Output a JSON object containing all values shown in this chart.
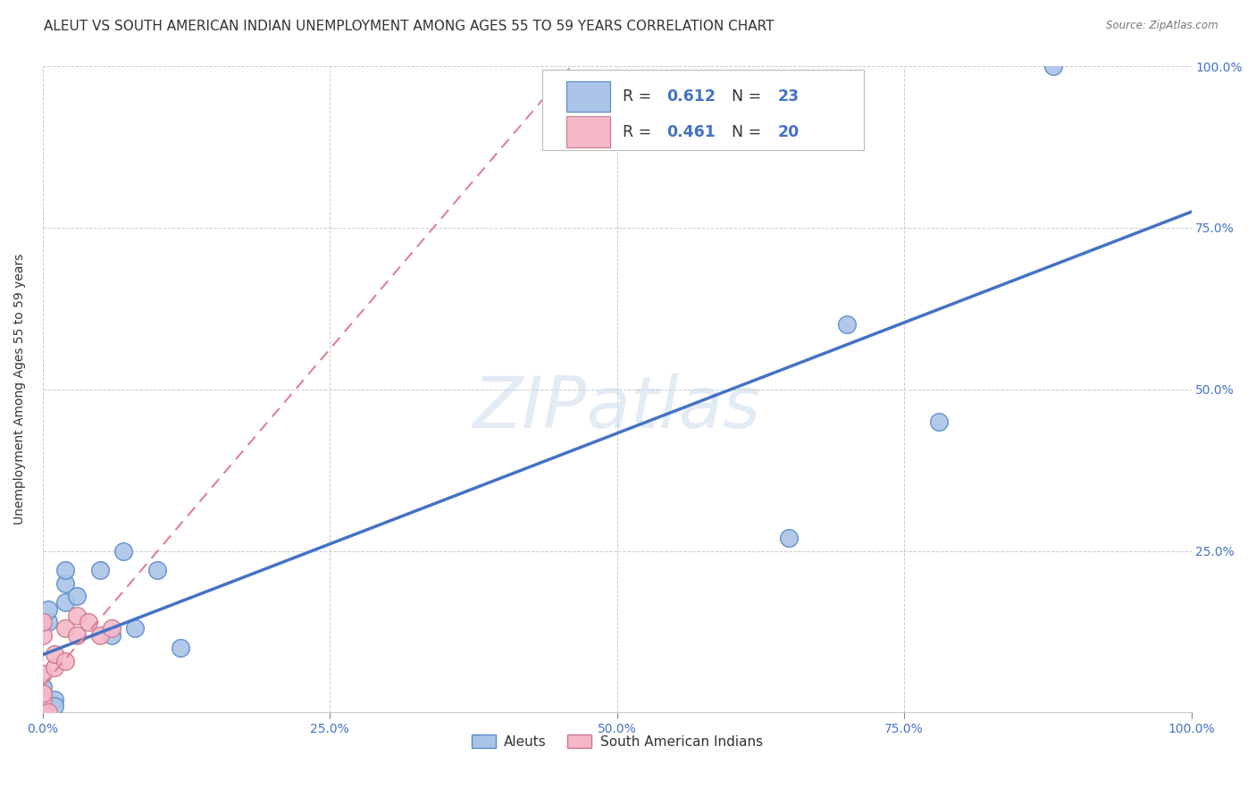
{
  "title": "ALEUT VS SOUTH AMERICAN INDIAN UNEMPLOYMENT AMONG AGES 55 TO 59 YEARS CORRELATION CHART",
  "source": "Source: ZipAtlas.com",
  "ylabel": "Unemployment Among Ages 55 to 59 years",
  "watermark": "ZIPatlas",
  "aleuts_x": [
    0.0,
    0.0,
    0.0,
    0.0,
    0.0,
    0.005,
    0.005,
    0.01,
    0.01,
    0.02,
    0.02,
    0.02,
    0.03,
    0.05,
    0.06,
    0.07,
    0.08,
    0.1,
    0.12,
    0.65,
    0.7,
    0.78,
    0.88
  ],
  "aleuts_y": [
    0.0,
    0.01,
    0.02,
    0.04,
    0.0,
    0.14,
    0.16,
    0.02,
    0.01,
    0.2,
    0.22,
    0.17,
    0.18,
    0.22,
    0.12,
    0.25,
    0.13,
    0.22,
    0.1,
    0.27,
    0.6,
    0.45,
    1.0
  ],
  "sa_indians_x": [
    0.0,
    0.0,
    0.0,
    0.0,
    0.0,
    0.0,
    0.0,
    0.0,
    0.0,
    0.0,
    0.005,
    0.01,
    0.01,
    0.02,
    0.02,
    0.03,
    0.03,
    0.04,
    0.05,
    0.06
  ],
  "sa_indians_y": [
    0.0,
    0.0,
    0.0,
    0.0,
    0.0,
    0.02,
    0.03,
    0.06,
    0.12,
    0.14,
    0.0,
    0.07,
    0.09,
    0.08,
    0.13,
    0.12,
    0.15,
    0.14,
    0.12,
    0.13
  ],
  "aleut_color": "#aac4e8",
  "aleut_edge_color": "#5588cc",
  "sa_color": "#f5b8c8",
  "sa_edge_color": "#cc7788",
  "aleut_line_color": "#4472c4",
  "sa_line_color": "#e08090",
  "sa_line_dash": [
    6,
    4
  ],
  "R_aleut": 0.612,
  "N_aleut": 23,
  "R_sa": 0.461,
  "N_sa": 20,
  "legend_text_color": "#333333",
  "legend_value_color": "#4472c4",
  "xlim": [
    0.0,
    1.0
  ],
  "ylim": [
    0.0,
    1.0
  ],
  "xticks": [
    0.0,
    0.25,
    0.5,
    0.75,
    1.0
  ],
  "yticks": [
    0.0,
    0.25,
    0.5,
    0.75,
    1.0
  ],
  "xtick_labels": [
    "0.0%",
    "25.0%",
    "50.0%",
    "75.0%",
    "100.0%"
  ],
  "ytick_labels_right": [
    "",
    "25.0%",
    "50.0%",
    "75.0%",
    "100.0%"
  ],
  "grid_color": "#cccccc",
  "background_color": "#ffffff",
  "title_fontsize": 11,
  "axis_label_fontsize": 10,
  "tick_fontsize": 10,
  "marker_size": 200
}
